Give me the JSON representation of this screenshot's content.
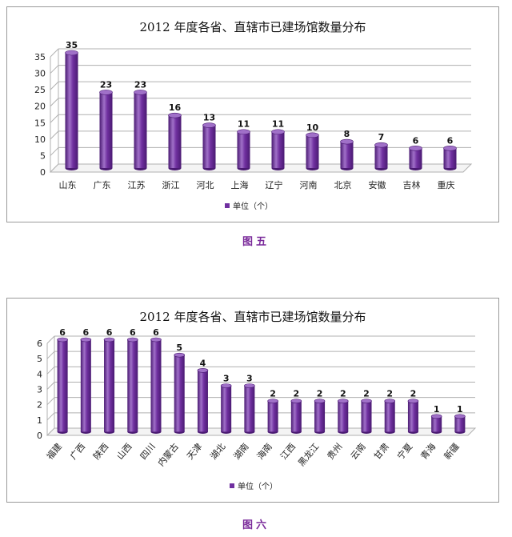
{
  "colors": {
    "bar": "#7030a0",
    "bar_dark": "#4a1a72",
    "bar_light": "#a070c8",
    "grid": "#b0b0b0",
    "caption": "#7a2a9a"
  },
  "chart_data": [
    {
      "type": "bar",
      "title": "2012 年度各省、直辖市已建场馆数量分布",
      "categories": [
        "山东",
        "广东",
        "江苏",
        "浙江",
        "河北",
        "上海",
        "辽宁",
        "河南",
        "北京",
        "安徽",
        "吉林",
        "重庆"
      ],
      "series": [
        {
          "name": "单位（个）",
          "values": [
            35,
            23,
            23,
            16,
            13,
            11,
            11,
            10,
            8,
            7,
            6,
            6
          ]
        }
      ],
      "ylim": [
        0,
        35
      ],
      "yticks": [
        0,
        5,
        10,
        15,
        20,
        25,
        30,
        35
      ],
      "grid": true,
      "legend": "bottom",
      "caption": "图五"
    },
    {
      "type": "bar",
      "title": "2012 年度各省、直辖市已建场馆数量分布",
      "categories": [
        "福建",
        "广西",
        "陕西",
        "山西",
        "四川",
        "内蒙古",
        "天津",
        "湖北",
        "湖南",
        "海南",
        "江西",
        "黑龙江",
        "贵州",
        "云南",
        "甘肃",
        "宁夏",
        "青海",
        "新疆"
      ],
      "series": [
        {
          "name": "单位（个）",
          "values": [
            6,
            6,
            6,
            6,
            6,
            5,
            4,
            3,
            3,
            2,
            2,
            2,
            2,
            2,
            2,
            2,
            1,
            1
          ]
        }
      ],
      "ylim": [
        0,
        6
      ],
      "yticks": [
        0,
        1,
        2,
        3,
        4,
        5,
        6
      ],
      "grid": true,
      "legend": "bottom",
      "caption": "图六"
    }
  ]
}
